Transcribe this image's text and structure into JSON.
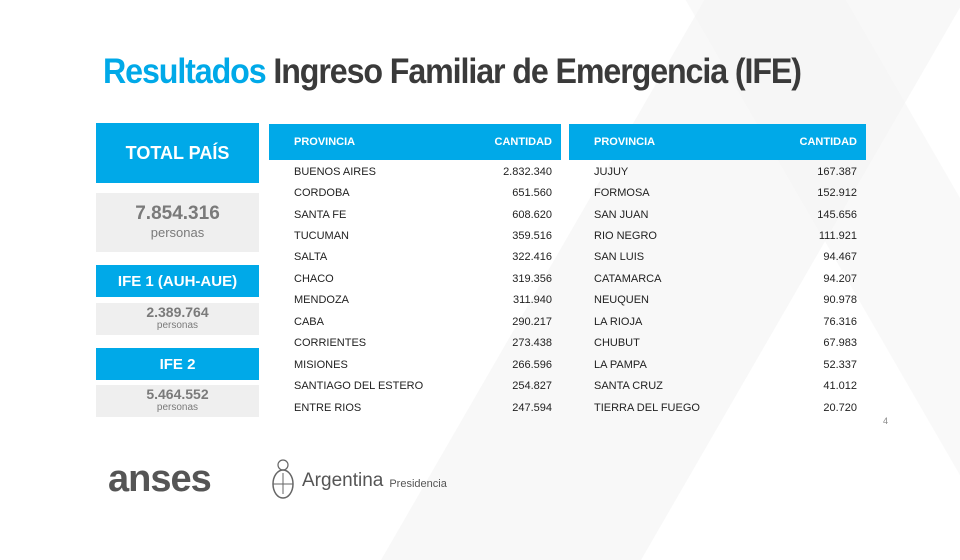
{
  "title": {
    "highlight": "Resultados",
    "rest": "Ingreso Familiar de Emergencia (IFE)"
  },
  "summary": {
    "total": {
      "label": "TOTAL PAÍS",
      "value": "7.854.316",
      "unit": "personas"
    },
    "ife1": {
      "label": "IFE 1 (AUH-AUE)",
      "value": "2.389.764",
      "unit": "personas"
    },
    "ife2": {
      "label": "IFE 2",
      "value": "5.464.552",
      "unit": "personas"
    }
  },
  "table_left": {
    "headers": [
      "PROVINCIA",
      "CANTIDAD"
    ],
    "rows": [
      [
        "BUENOS AIRES",
        "2.832.340"
      ],
      [
        "CORDOBA",
        "651.560"
      ],
      [
        "SANTA FE",
        "608.620"
      ],
      [
        "TUCUMAN",
        "359.516"
      ],
      [
        "SALTA",
        "322.416"
      ],
      [
        "CHACO",
        "319.356"
      ],
      [
        "MENDOZA",
        "311.940"
      ],
      [
        "CABA",
        "290.217"
      ],
      [
        "CORRIENTES",
        "273.438"
      ],
      [
        "MISIONES",
        "266.596"
      ],
      [
        "SANTIAGO DEL ESTERO",
        "254.827"
      ],
      [
        "ENTRE RIOS",
        "247.594"
      ]
    ]
  },
  "table_right": {
    "headers": [
      "PROVINCIA",
      "CANTIDAD"
    ],
    "rows": [
      [
        "JUJUY",
        "167.387"
      ],
      [
        "FORMOSA",
        "152.912"
      ],
      [
        "SAN JUAN",
        "145.656"
      ],
      [
        "RIO NEGRO",
        "111.921"
      ],
      [
        "SAN LUIS",
        "94.467"
      ],
      [
        "CATAMARCA",
        "94.207"
      ],
      [
        "NEUQUEN",
        "90.978"
      ],
      [
        "LA RIOJA",
        "76.316"
      ],
      [
        "CHUBUT",
        "67.983"
      ],
      [
        "LA PAMPA",
        "52.337"
      ],
      [
        "SANTA CRUZ",
        "41.012"
      ],
      [
        "TIERRA DEL FUEGO",
        "20.720"
      ]
    ]
  },
  "page_number": "4",
  "footer": {
    "anses_logo": "anses",
    "argentina": "Argentina",
    "presidencia": "Presidencia"
  },
  "colors": {
    "accent": "#00a9e8",
    "text": "#3a3a3a",
    "panel": "#efefef"
  }
}
